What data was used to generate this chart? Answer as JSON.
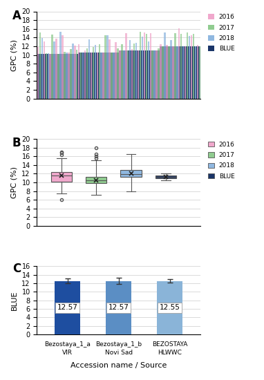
{
  "panel_A": {
    "title": "A",
    "ylabel": "GPC (%)",
    "ylim": [
      0,
      20
    ],
    "yticks": [
      0,
      2,
      4,
      6,
      8,
      10,
      12,
      14,
      16,
      18,
      20
    ],
    "colors": {
      "2016": "#f0a8cc",
      "2017": "#90cc90",
      "2018": "#90b8e0",
      "BLUE": "#1a3568"
    },
    "n_groups": 4,
    "group_sizes": [
      20,
      20,
      20,
      20
    ],
    "group_blue_vals": [
      10.3,
      10.5,
      11.0,
      12.0
    ],
    "group_year_means": [
      11.5,
      10.8,
      11.5,
      12.2
    ]
  },
  "panel_B": {
    "title": "B",
    "ylabel": "GPC (%)",
    "ylim": [
      0,
      20
    ],
    "yticks": [
      0,
      2,
      4,
      6,
      8,
      10,
      12,
      14,
      16,
      18,
      20
    ],
    "boxes": [
      {
        "label": "2016",
        "q1": 10.2,
        "median": 11.5,
        "q3": 12.3,
        "whislo": 7.5,
        "whishi": 15.5,
        "mean": 11.5,
        "fliers": [
          17.0,
          16.8,
          16.3,
          6.0
        ]
      },
      {
        "label": "2017",
        "q1": 9.8,
        "median": 10.4,
        "q3": 11.2,
        "whislo": 7.2,
        "whishi": 15.0,
        "mean": 10.5,
        "fliers": [
          18.0,
          16.5,
          16.0,
          15.5
        ]
      },
      {
        "label": "2018",
        "q1": 11.2,
        "median": 11.9,
        "q3": 12.8,
        "whislo": 8.0,
        "whishi": 16.5,
        "mean": 12.0,
        "fliers": []
      },
      {
        "label": "BLUE",
        "q1": 11.0,
        "median": 11.2,
        "q3": 11.5,
        "whislo": 10.5,
        "whishi": 12.0,
        "mean": 11.3,
        "fliers": []
      }
    ]
  },
  "panel_C": {
    "title": "C",
    "ylabel": "BLUE",
    "ylim": [
      0,
      16
    ],
    "yticks": [
      0,
      2,
      4,
      6,
      8,
      10,
      12,
      14,
      16
    ],
    "bars": [
      {
        "label1": "Bezostaya_1_a",
        "label2": "VIR",
        "value": 12.57,
        "error": 0.5,
        "color": "#1e4ea0"
      },
      {
        "label1": "Bezostaya_1_b",
        "label2": "Novi Sad",
        "value": 12.57,
        "error": 0.7,
        "color": "#5b8ec4"
      },
      {
        "label1": "BEZOSTAYA",
        "label2": "HLWWC",
        "value": 12.55,
        "error": 0.35,
        "color": "#8ab4d8"
      }
    ],
    "xlabel": "Accession name / Source"
  },
  "legend": {
    "labels": [
      "2016",
      "2017",
      "2018",
      "BLUE"
    ],
    "colors_fill": [
      "#f0a8cc",
      "#90cc90",
      "#90b8e0",
      "#1a3568"
    ],
    "colors_edge": [
      "#c070a0",
      "#60a060",
      "#6090b8",
      "#0f2050"
    ]
  },
  "figure": {
    "bg_color": "#ffffff",
    "grid_color": "#cccccc",
    "font_size": 8
  }
}
